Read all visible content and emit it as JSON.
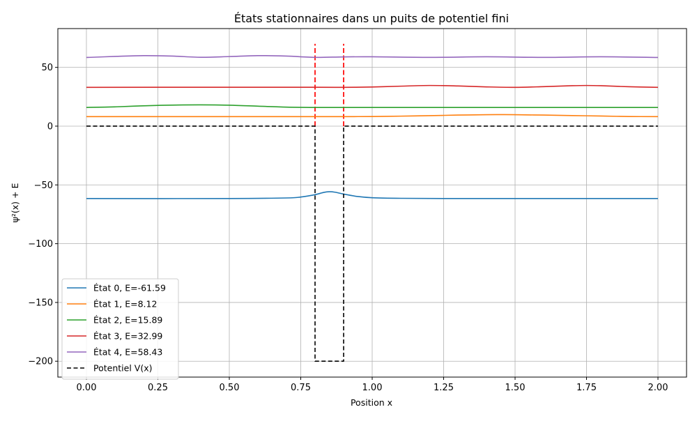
{
  "chart_data": {
    "type": "line",
    "title": "États stationnaires dans un puits de potentiel fini",
    "xlabel": "Position x",
    "ylabel": "ψ²(x) + E",
    "xlim": [
      -0.1,
      2.1
    ],
    "ylim": [
      -213.5,
      83.0
    ],
    "xticks": [
      0.0,
      0.25,
      0.5,
      0.75,
      1.0,
      1.25,
      1.5,
      1.75,
      2.0
    ],
    "xtick_labels": [
      "0.00",
      "0.25",
      "0.50",
      "0.75",
      "1.00",
      "1.25",
      "1.50",
      "1.75",
      "2.00"
    ],
    "yticks": [
      50,
      0,
      -50,
      -100,
      -150,
      -200
    ],
    "ytick_labels": [
      "50",
      "0",
      "−50",
      "−100",
      "−150",
      "−200"
    ],
    "grid": true,
    "legend_position": "lower-left",
    "series": [
      {
        "name": "État 0, E=-61.59",
        "color": "#1f77b4",
        "style": "solid",
        "x": [
          0.0,
          0.5,
          0.7,
          0.75,
          0.8,
          0.83,
          0.85,
          0.87,
          0.9,
          0.95,
          1.0,
          1.1,
          1.25,
          1.5,
          2.0
        ],
        "y": [
          -61.6,
          -61.6,
          -61.1,
          -60.3,
          -58.3,
          -56.4,
          -55.8,
          -56.2,
          -57.8,
          -59.9,
          -60.9,
          -61.4,
          -61.6,
          -61.6,
          -61.6
        ]
      },
      {
        "name": "État 1, E=8.12",
        "color": "#ff7f0e",
        "style": "solid",
        "x": [
          0.0,
          0.5,
          0.8,
          0.9,
          1.0,
          1.1,
          1.2,
          1.3,
          1.4,
          1.45,
          1.5,
          1.6,
          1.7,
          1.8,
          1.9,
          2.0
        ],
        "y": [
          8.1,
          8.1,
          8.1,
          8.1,
          8.2,
          8.5,
          8.9,
          9.4,
          9.7,
          9.8,
          9.7,
          9.4,
          9.0,
          8.6,
          8.2,
          8.1
        ]
      },
      {
        "name": "État 2, E=15.89",
        "color": "#2ca02c",
        "style": "solid",
        "x": [
          0.0,
          0.1,
          0.2,
          0.3,
          0.4,
          0.5,
          0.6,
          0.7,
          0.8,
          0.9,
          1.0,
          1.5,
          2.0
        ],
        "y": [
          15.9,
          16.4,
          17.3,
          17.9,
          18.1,
          17.8,
          17.0,
          16.2,
          15.9,
          15.9,
          15.9,
          15.9,
          15.9
        ]
      },
      {
        "name": "État 3, E=32.99",
        "color": "#d62728",
        "style": "solid",
        "x": [
          0.0,
          0.5,
          0.8,
          0.9,
          1.0,
          1.1,
          1.2,
          1.3,
          1.4,
          1.5,
          1.6,
          1.7,
          1.75,
          1.8,
          1.9,
          2.0
        ],
        "y": [
          33.0,
          33.1,
          33.1,
          33.0,
          33.3,
          34.0,
          34.6,
          34.2,
          33.4,
          33.0,
          33.6,
          34.4,
          34.6,
          34.4,
          33.5,
          33.0
        ]
      },
      {
        "name": "État 4, E=58.43",
        "color": "#9467bd",
        "style": "solid",
        "x": [
          0.0,
          0.1,
          0.2,
          0.3,
          0.4,
          0.5,
          0.6,
          0.7,
          0.8,
          0.9,
          1.0,
          1.2,
          1.4,
          1.6,
          1.8,
          2.0
        ],
        "y": [
          58.4,
          59.3,
          60.0,
          59.6,
          58.6,
          59.2,
          60.0,
          59.6,
          58.5,
          58.9,
          59.0,
          58.5,
          59.0,
          58.5,
          59.0,
          58.4
        ]
      },
      {
        "name": "Potentiel V(x)",
        "color": "#000000",
        "style": "dashed",
        "x": [
          0.0,
          0.8,
          0.8,
          0.9,
          0.9,
          2.0
        ],
        "y": [
          0,
          0,
          -200,
          -200,
          0,
          0
        ]
      }
    ],
    "vlines": [
      {
        "x": 0.8,
        "y_from": 0,
        "y_to": 70,
        "color": "#ff0000",
        "style": "dashed"
      },
      {
        "x": 0.9,
        "y_from": 0,
        "y_to": 70,
        "color": "#ff0000",
        "style": "dashed"
      }
    ]
  }
}
